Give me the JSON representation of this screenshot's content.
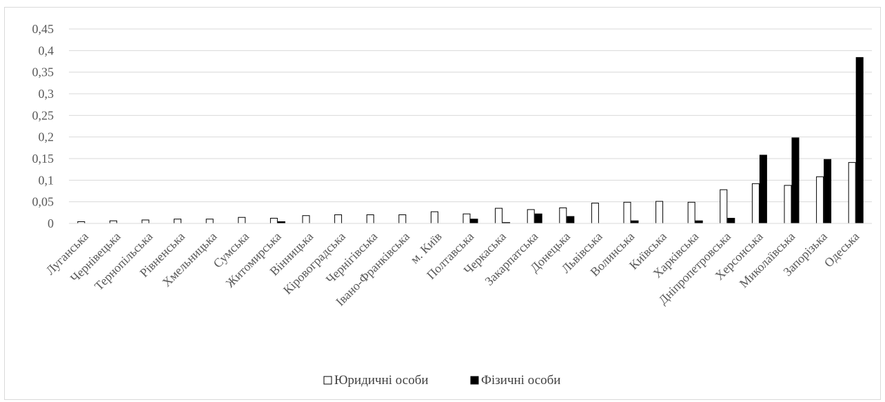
{
  "chart_data": {
    "type": "bar",
    "title": "",
    "xlabel": "",
    "ylabel": "",
    "ylim": [
      0,
      0.45
    ],
    "yticks": [
      "0",
      "0,05",
      "0,1",
      "0,15",
      "0,2",
      "0,25",
      "0,3",
      "0,35",
      "0,4",
      "0,45"
    ],
    "grid": true,
    "legend_position": "bottom",
    "categories": [
      "Луганська",
      "Чернівецька",
      "Тернопільська",
      "Рівненська",
      "Хмельницька",
      "Сумська",
      "Житомирська",
      "Вінницька",
      "Кіровоградська",
      "Чернігівська",
      "Івано-Франківська",
      "м. Київ",
      "Полтавська",
      "Черкаська",
      "Закарпатська",
      "Донецька",
      "Львівська",
      "Волинська",
      "Київська",
      "Харківська",
      "Дніпропетровська",
      "Херсонська",
      "Миколаївська",
      "Запорізька",
      "Одеська"
    ],
    "series": [
      {
        "name": "Юридичні особи",
        "color": "#ffffff",
        "stroke": "#000000",
        "values": [
          0.004,
          0.006,
          0.008,
          0.01,
          0.01,
          0.014,
          0.012,
          0.018,
          0.02,
          0.02,
          0.02,
          0.027,
          0.022,
          0.035,
          0.032,
          0.036,
          0.047,
          0.049,
          0.051,
          0.049,
          0.078,
          0.092,
          0.088,
          0.108,
          0.141
        ]
      },
      {
        "name": "Фізичні особи",
        "color": "#000000",
        "stroke": "#000000",
        "values": [
          0,
          0,
          0,
          0,
          0,
          0,
          0.004,
          0,
          0,
          0,
          0,
          0,
          0.01,
          0.002,
          0.022,
          0.016,
          0,
          0.006,
          0,
          0.006,
          0.012,
          0.158,
          0.198,
          0.148,
          0.384
        ]
      }
    ]
  }
}
